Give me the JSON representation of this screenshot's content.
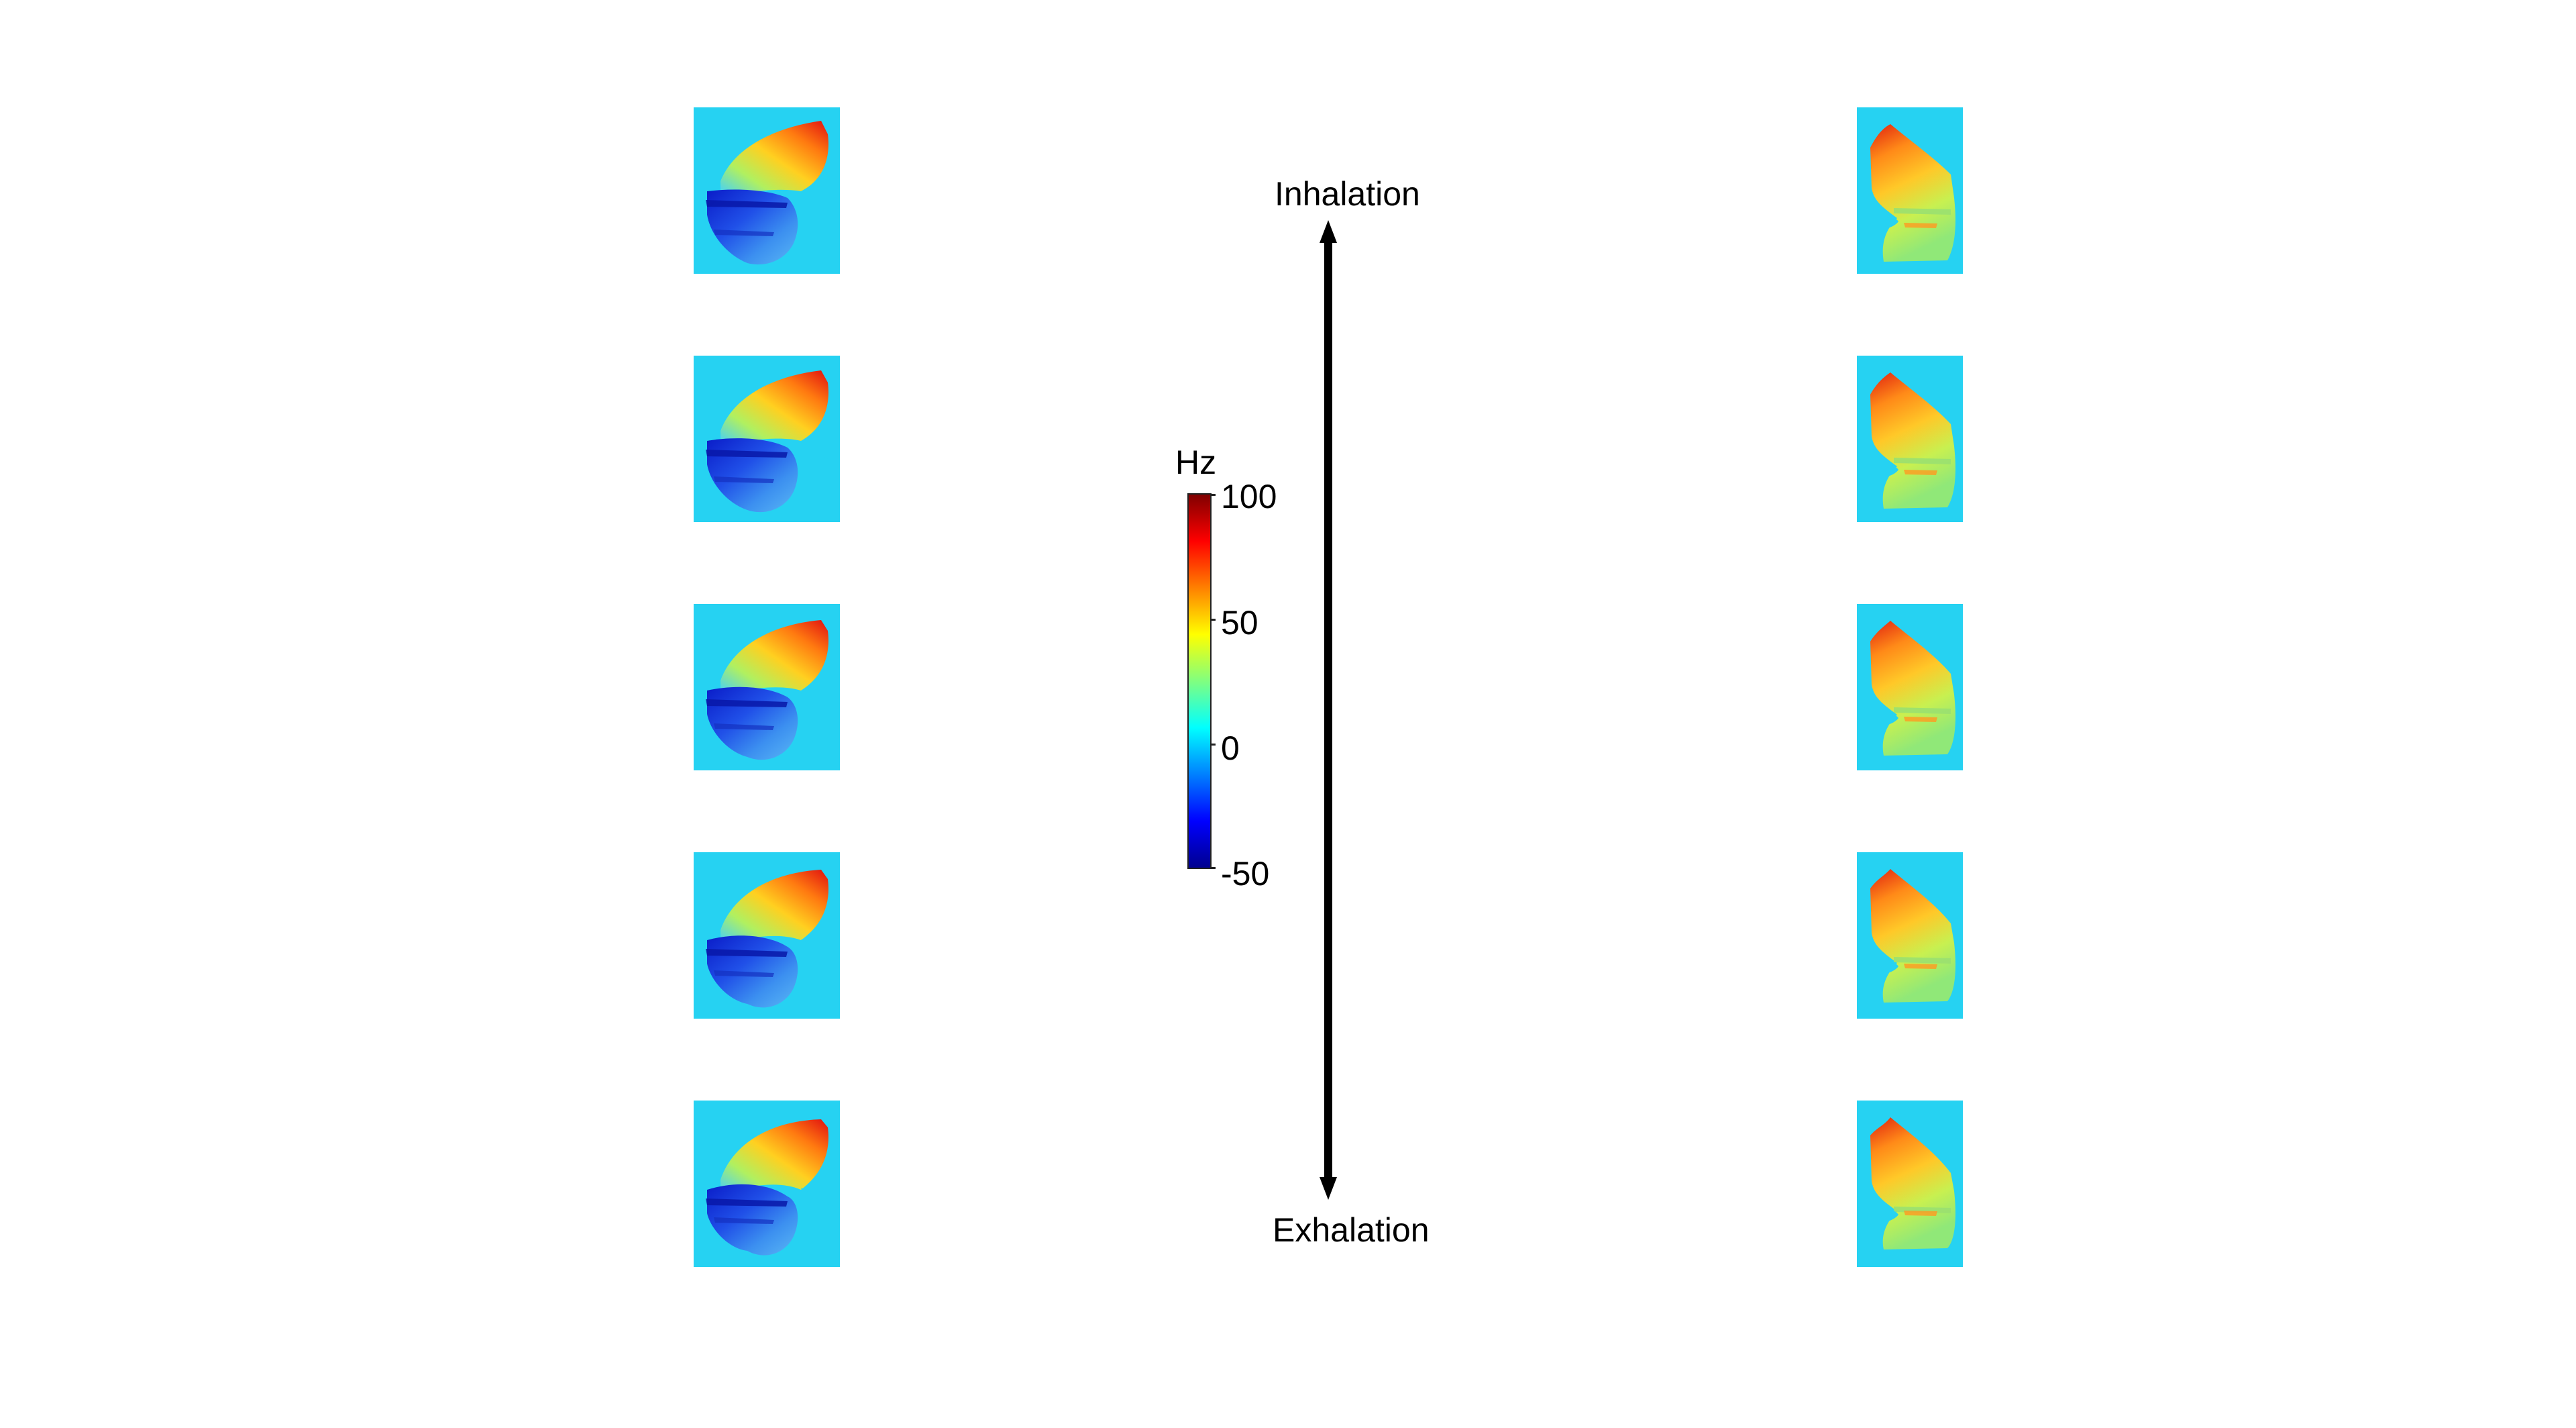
{
  "colorbar": {
    "unit": "Hz",
    "ticks": [
      "100",
      "50",
      "0",
      "-50"
    ],
    "range": [
      -50,
      100
    ]
  },
  "arrow": {
    "top_label": "Inhalation",
    "bottom_label": "Exhalation"
  },
  "colors": {
    "background_tile": "#26d2f2",
    "arrow": "#000000",
    "colormap": [
      "#00008f",
      "#0000ff",
      "#0080ff",
      "#00ffff",
      "#80ff80",
      "#ffff00",
      "#ff8000",
      "#ff0000",
      "#800000"
    ]
  },
  "panels": {
    "left_column_count": 5,
    "right_column_count": 5
  }
}
